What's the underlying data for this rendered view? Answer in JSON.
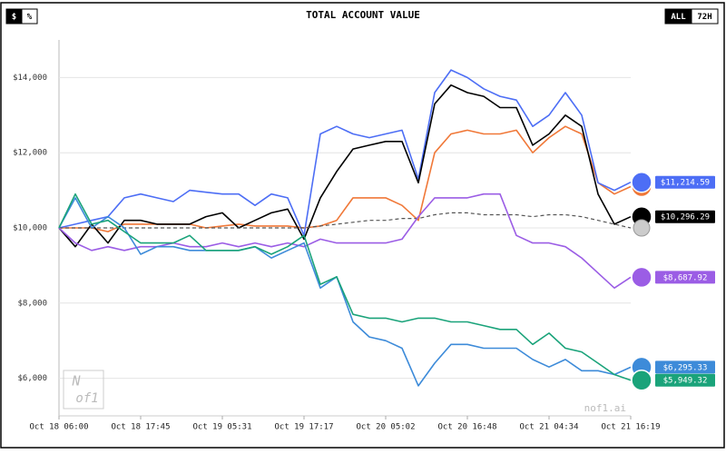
{
  "chart_data": {
    "type": "line",
    "title": "TOTAL ACCOUNT VALUE",
    "unit_toggle": [
      "$",
      "%"
    ],
    "range_toggle": [
      "ALL",
      "72H"
    ],
    "watermark": "nof1.ai",
    "logo": [
      "N",
      "of1"
    ],
    "x": [
      0,
      1,
      2,
      3,
      4,
      5,
      6,
      7,
      8,
      9,
      10,
      11,
      12,
      13,
      14,
      15,
      16,
      17,
      18,
      19,
      20,
      21,
      22,
      23,
      24,
      25,
      26,
      27,
      28,
      29,
      30,
      31,
      32,
      33,
      34,
      35
    ],
    "xlim": [
      0,
      35
    ],
    "xticks": [
      {
        "value": 0,
        "label": "Oct 18 06:00"
      },
      {
        "value": 5,
        "label": "Oct 18 17:45"
      },
      {
        "value": 10,
        "label": "Oct 19 05:31"
      },
      {
        "value": 15,
        "label": "Oct 19 17:17"
      },
      {
        "value": 20,
        "label": "Oct 20 05:02"
      },
      {
        "value": 25,
        "label": "Oct 20 16:48"
      },
      {
        "value": 30,
        "label": "Oct 21 04:34"
      },
      {
        "value": 35,
        "label": "Oct 21 16:19"
      }
    ],
    "ylim": [
      5000,
      15000
    ],
    "yticks": [
      {
        "value": 6000,
        "label": "$6,000"
      },
      {
        "value": 8000,
        "label": "$8,000"
      },
      {
        "value": 10000,
        "label": "$10,000"
      },
      {
        "value": 12000,
        "label": "$12,000"
      },
      {
        "value": 14000,
        "label": "$14,000"
      }
    ],
    "grid": true,
    "series": [
      {
        "color": "#f07838",
        "values": [
          10000,
          10000,
          10000,
          9900,
          10100,
          10100,
          10100,
          10100,
          10100,
          10000,
          10050,
          10100,
          10050,
          10050,
          10050,
          10000,
          10050,
          10200,
          10800,
          10800,
          10800,
          10600,
          10200,
          12000,
          12500,
          12600,
          12500,
          12500,
          12600,
          12000,
          12400,
          12700,
          12500,
          11200,
          10900,
          11100
        ]
      },
      {
        "color": "#4d6ef5",
        "label": "$11,214.59",
        "values": [
          10000,
          10100,
          10200,
          10300,
          10800,
          10900,
          10800,
          10700,
          11000,
          10950,
          10900,
          10900,
          10600,
          10900,
          10800,
          9800,
          12500,
          12700,
          12500,
          12400,
          12500,
          12600,
          11300,
          13600,
          14200,
          14000,
          13700,
          13500,
          13400,
          12700,
          13000,
          13600,
          13000,
          11200,
          11000,
          11214.59
        ]
      },
      {
        "color": "#000000",
        "label": "$10,296.29",
        "values": [
          10000,
          9500,
          10100,
          9600,
          10200,
          10200,
          10100,
          10100,
          10100,
          10300,
          10400,
          10000,
          10200,
          10400,
          10500,
          9700,
          10800,
          11500,
          12100,
          12200,
          12300,
          12300,
          11200,
          13300,
          13800,
          13600,
          13500,
          13200,
          13200,
          12200,
          12500,
          13000,
          12700,
          10900,
          10100,
          10296.29
        ]
      },
      {
        "color": "#555555",
        "dash": true,
        "values": [
          10000,
          10000,
          10000,
          10000,
          10000,
          10000,
          10000,
          10000,
          10000,
          10000,
          10000,
          10000,
          10000,
          10000,
          10000,
          10000,
          10050,
          10100,
          10150,
          10200,
          10200,
          10250,
          10250,
          10350,
          10400,
          10400,
          10350,
          10350,
          10350,
          10300,
          10350,
          10350,
          10300,
          10200,
          10100,
          10000
        ]
      },
      {
        "color": "#9b5de5",
        "label": "$8,687.92",
        "values": [
          10000,
          9600,
          9400,
          9500,
          9400,
          9500,
          9500,
          9600,
          9500,
          9500,
          9600,
          9500,
          9600,
          9500,
          9600,
          9500,
          9700,
          9600,
          9600,
          9600,
          9600,
          9700,
          10300,
          10800,
          10800,
          10800,
          10900,
          10900,
          9800,
          9600,
          9600,
          9500,
          9200,
          8800,
          8400,
          8687.92
        ]
      },
      {
        "color": "#3d8bd9",
        "label": "$6,295.33",
        "values": [
          10000,
          10800,
          10000,
          10300,
          10000,
          9300,
          9500,
          9500,
          9400,
          9400,
          9400,
          9400,
          9500,
          9200,
          9400,
          9600,
          8400,
          8700,
          7500,
          7100,
          7000,
          6800,
          5800,
          6400,
          6900,
          6900,
          6800,
          6800,
          6800,
          6500,
          6300,
          6500,
          6200,
          6200,
          6100,
          6295.33
        ]
      },
      {
        "color": "#1aa37a",
        "label": "$5,949.32",
        "values": [
          10000,
          10900,
          10100,
          10200,
          9900,
          9600,
          9600,
          9600,
          9800,
          9400,
          9400,
          9400,
          9500,
          9300,
          9500,
          9800,
          8500,
          8700,
          7700,
          7600,
          7600,
          7500,
          7600,
          7600,
          7500,
          7500,
          7400,
          7300,
          7300,
          6900,
          7200,
          6800,
          6700,
          6400,
          6100,
          5949.32
        ]
      }
    ]
  }
}
